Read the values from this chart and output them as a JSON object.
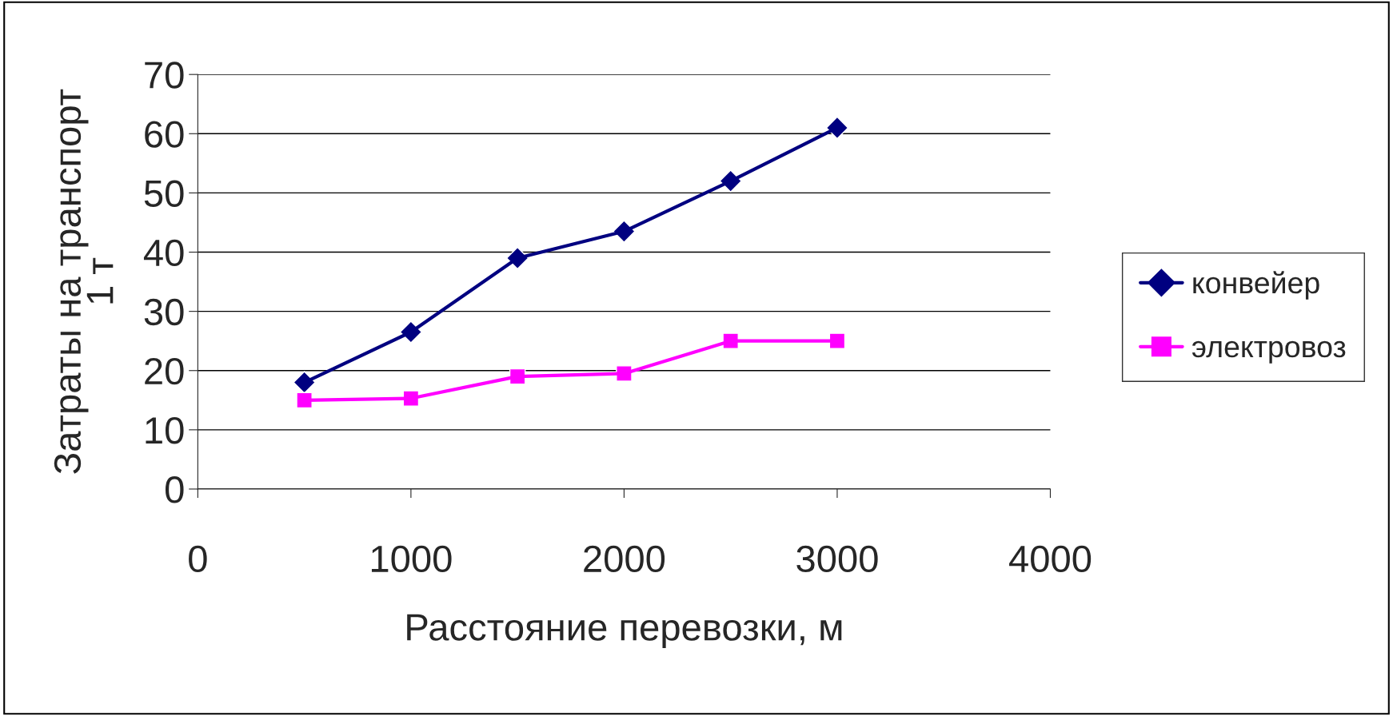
{
  "chart_data": {
    "type": "line",
    "xlabel": "Расстояние перевозки, м",
    "ylabel": "Затраты на транспорт 1 т",
    "x": [
      500,
      1000,
      1500,
      2000,
      2500,
      3000
    ],
    "series": [
      {
        "name": "конвейер",
        "color": "#000080",
        "marker": "diamond",
        "values": [
          18,
          26.5,
          39,
          43.5,
          52,
          61
        ]
      },
      {
        "name": "электровоз",
        "color": "#ff00ff",
        "marker": "square",
        "values": [
          15,
          15.3,
          19,
          19.5,
          25,
          25
        ]
      }
    ],
    "xlim": [
      0,
      4000
    ],
    "xticks": [
      0,
      1000,
      2000,
      3000,
      4000
    ],
    "ylim": [
      0,
      70
    ],
    "yticks": [
      0,
      10,
      20,
      30,
      40,
      50,
      60,
      70
    ],
    "grid": "y",
    "legend": "right",
    "line_style": "solid"
  }
}
